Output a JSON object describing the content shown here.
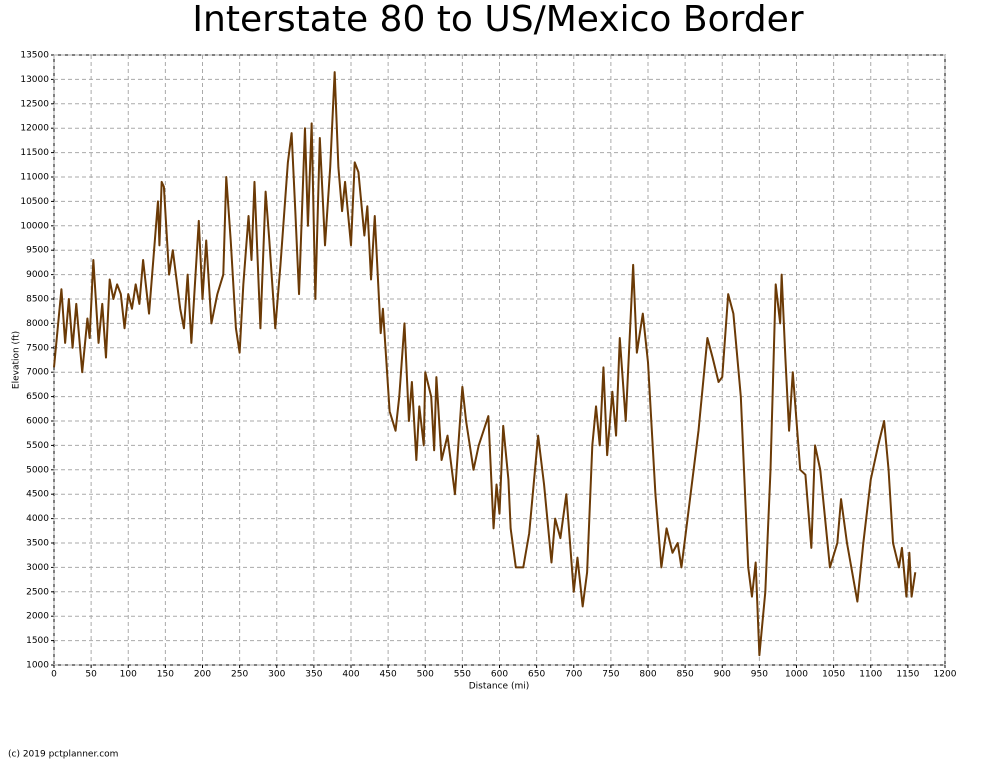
{
  "chart_data": {
    "type": "line",
    "title": "Interstate 80 to US/Mexico Border",
    "x_label": "Distance (mi)",
    "y_label": "Elevation (ft)",
    "footer": "(c) 2019 pctplanner.com",
    "x": [
      0,
      10,
      15,
      20,
      25,
      30,
      38,
      45,
      48,
      53,
      60,
      65,
      70,
      75,
      80,
      85,
      90,
      95,
      100,
      105,
      110,
      115,
      120,
      128,
      140,
      142,
      145,
      148,
      155,
      160,
      170,
      175,
      180,
      185,
      195,
      200,
      205,
      212,
      220,
      228,
      232,
      238,
      245,
      250,
      255,
      262,
      266,
      270,
      278,
      285,
      290,
      298,
      305,
      315,
      320,
      325,
      330,
      338,
      342,
      347,
      352,
      358,
      365,
      372,
      378,
      383,
      388,
      392,
      400,
      405,
      410,
      418,
      422,
      427,
      432,
      440,
      443,
      452,
      460,
      465,
      472,
      478,
      482,
      488,
      492,
      498,
      500,
      508,
      512,
      515,
      522,
      530,
      540,
      550,
      555,
      565,
      572,
      585,
      592,
      596,
      600,
      605,
      612,
      615,
      622,
      632,
      640,
      652,
      660,
      670,
      675,
      682,
      690,
      700,
      705,
      712,
      718,
      725,
      730,
      735,
      740,
      745,
      752,
      757,
      762,
      770,
      780,
      785,
      793,
      800,
      810,
      818,
      825,
      833,
      840,
      845,
      850,
      868,
      880,
      887,
      895,
      900,
      908,
      915,
      925,
      935,
      940,
      945,
      950,
      958,
      965,
      972,
      978,
      980,
      985,
      990,
      995,
      1005,
      1012,
      1020,
      1025,
      1032,
      1045,
      1055,
      1060,
      1068,
      1082,
      1090,
      1100,
      1110,
      1118,
      1124,
      1130,
      1138,
      1142,
      1148,
      1152,
      1155,
      1160
    ],
    "series": [
      {
        "name": "Elevation",
        "color": "#6b3a06",
        "values": [
          7100,
          8700,
          7600,
          8500,
          7500,
          8400,
          7000,
          8100,
          7700,
          9300,
          7600,
          8400,
          7300,
          8900,
          8500,
          8800,
          8600,
          7900,
          8600,
          8300,
          8800,
          8400,
          9300,
          8200,
          10500,
          9600,
          10900,
          10800,
          9000,
          9500,
          8300,
          7900,
          9000,
          7600,
          10100,
          8500,
          9700,
          8000,
          8600,
          9000,
          11000,
          9700,
          7900,
          7400,
          8800,
          10200,
          9300,
          10900,
          7900,
          10700,
          9700,
          7900,
          9200,
          11300,
          11900,
          10300,
          8600,
          12000,
          10000,
          12100,
          8500,
          11800,
          9600,
          11200,
          13150,
          11200,
          10300,
          10900,
          9600,
          11300,
          11100,
          9800,
          10400,
          8900,
          10200,
          7800,
          8300,
          6200,
          5800,
          6500,
          8000,
          6000,
          6800,
          5200,
          6300,
          5500,
          7000,
          6500,
          5400,
          6900,
          5200,
          5700,
          4500,
          6700,
          6000,
          5000,
          5500,
          6100,
          3800,
          4700,
          4100,
          5900,
          4800,
          3800,
          3000,
          3000,
          3700,
          5700,
          4700,
          3100,
          4000,
          3600,
          4500,
          2500,
          3200,
          2200,
          2900,
          5500,
          6300,
          5500,
          7100,
          5300,
          6600,
          5700,
          7700,
          6000,
          9200,
          7400,
          8200,
          7200,
          4500,
          3000,
          3800,
          3300,
          3500,
          3000,
          3600,
          5800,
          7700,
          7300,
          6800,
          6900,
          8600,
          8200,
          6500,
          3000,
          2400,
          3100,
          1200,
          2500,
          5000,
          8800,
          8000,
          9000,
          7300,
          5800,
          7000,
          5000,
          4900,
          3400,
          5500,
          5000,
          3000,
          3500,
          4400,
          3500,
          2300,
          3500,
          4800,
          5500,
          6000,
          5000,
          3500,
          3000,
          3400,
          2400,
          3300,
          2400,
          2900
        ]
      }
    ],
    "xlim": [
      0,
      1200
    ],
    "xticks": [
      0,
      50,
      100,
      150,
      200,
      250,
      300,
      350,
      400,
      450,
      500,
      550,
      600,
      650,
      700,
      750,
      800,
      850,
      900,
      950,
      1000,
      1050,
      1100,
      1150,
      1200
    ],
    "ylim": [
      1000,
      13500
    ],
    "yticks": [
      1000,
      1500,
      2000,
      2500,
      3000,
      3500,
      4000,
      4500,
      5000,
      5500,
      6000,
      6500,
      7000,
      7500,
      8000,
      8500,
      9000,
      9500,
      10000,
      10500,
      11000,
      11500,
      12000,
      12500,
      13000,
      13500
    ],
    "grid": true
  }
}
